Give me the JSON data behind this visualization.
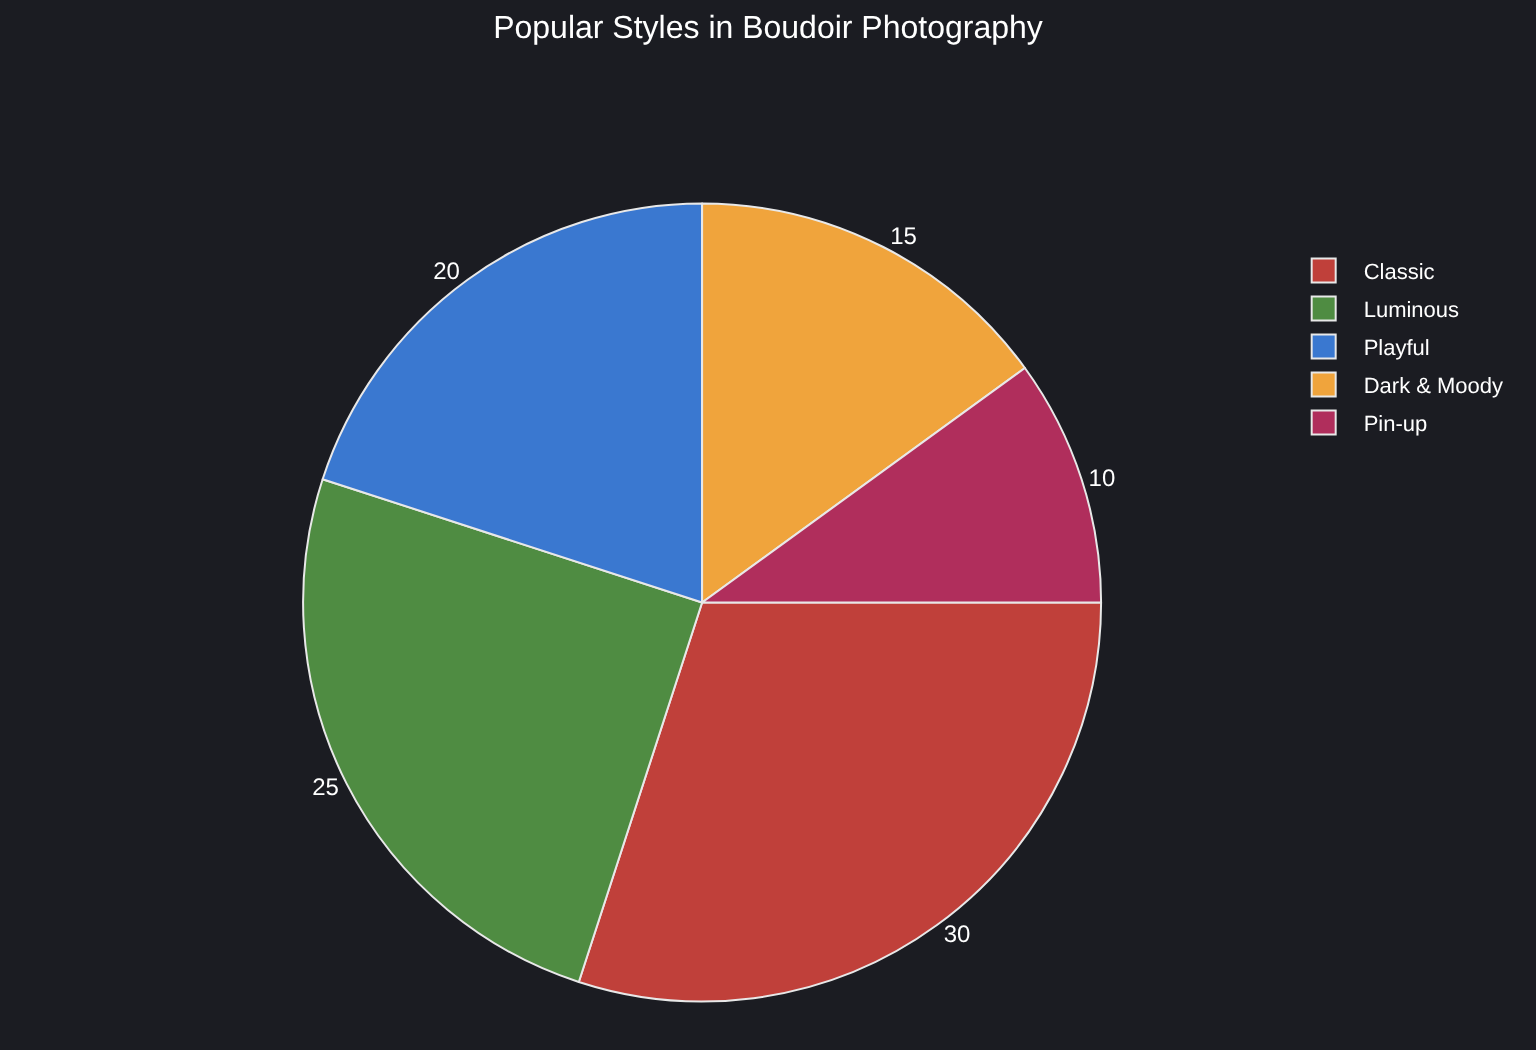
{
  "chart_data": {
    "type": "pie",
    "title": "Popular Styles in Boudoir Photography",
    "categories": [
      "Classic",
      "Luminous",
      "Playful",
      "Dark & Moody",
      "Pin-up"
    ],
    "values": [
      30,
      25,
      20,
      15,
      10
    ],
    "colors": [
      "#c0403a",
      "#4f8c42",
      "#3a78d0",
      "#f0a43c",
      "#b02e5c"
    ],
    "data_labels": true,
    "legend": "top right"
  }
}
